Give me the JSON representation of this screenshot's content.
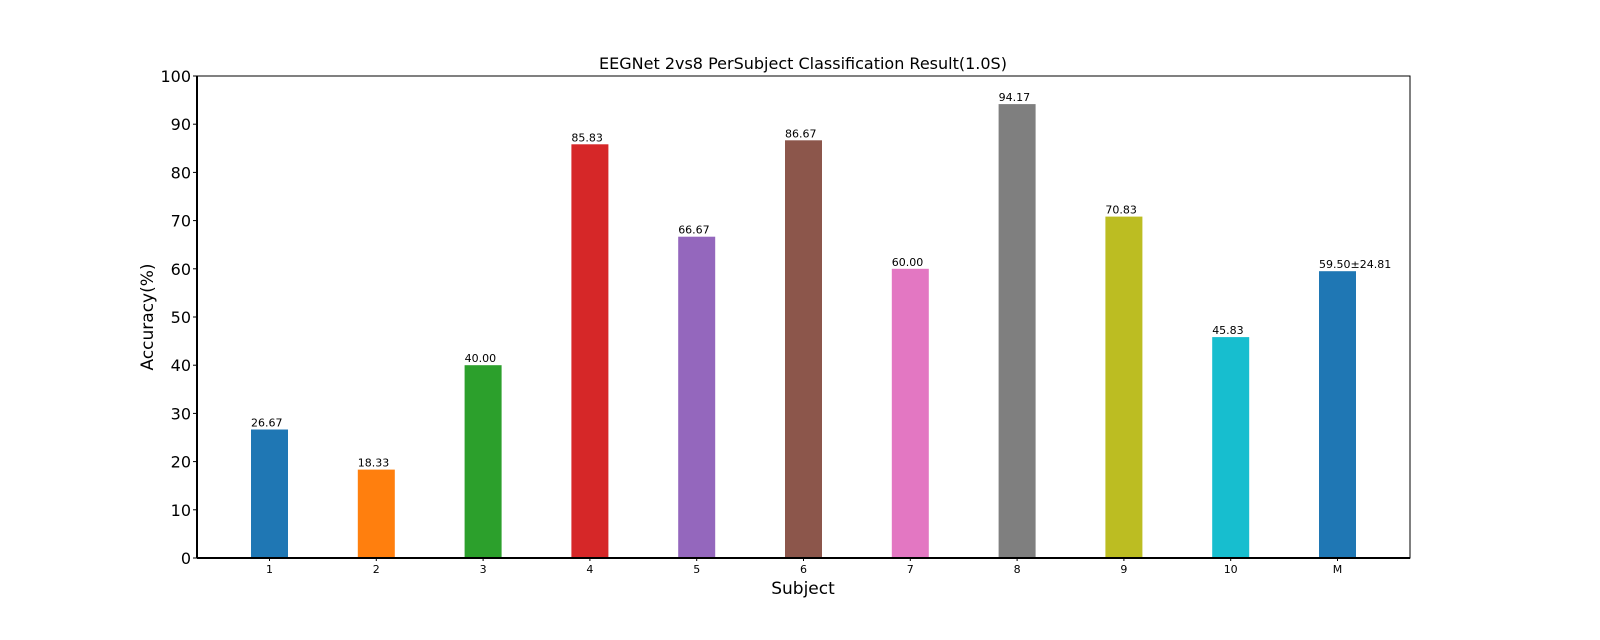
{
  "chart_data": {
    "type": "bar",
    "title": "EEGNet 2vs8 PerSubject Classification Result(1.0S)",
    "xlabel": "Subject",
    "ylabel": "Accuracy(%)",
    "ylim": [
      0,
      100
    ],
    "yticks": [
      0,
      10,
      20,
      30,
      40,
      50,
      60,
      70,
      80,
      90,
      100
    ],
    "categories": [
      "1",
      "2",
      "3",
      "4",
      "5",
      "6",
      "7",
      "8",
      "9",
      "10",
      "M"
    ],
    "values": [
      26.67,
      18.33,
      40.0,
      85.83,
      66.67,
      86.67,
      60.0,
      94.17,
      70.83,
      45.83,
      59.5
    ],
    "value_labels": [
      "26.67",
      "18.33",
      "40.00",
      "85.83",
      "66.67",
      "86.67",
      "60.00",
      "94.17",
      "70.83",
      "45.83",
      "59.50±24.81"
    ],
    "colors": [
      "#1f77b4",
      "#ff7f0e",
      "#2ca02c",
      "#d62728",
      "#9467bd",
      "#8c564b",
      "#e377c2",
      "#7f7f7f",
      "#bcbd22",
      "#17becf",
      "#1f77b4"
    ],
    "label_colors": [
      "#000000",
      "#000000",
      "#000000",
      "#000000",
      "#000000",
      "#000000",
      "#000000",
      "#000000",
      "#000000",
      "#000000",
      "#ff0000"
    ],
    "grid": false,
    "legend": "none"
  }
}
